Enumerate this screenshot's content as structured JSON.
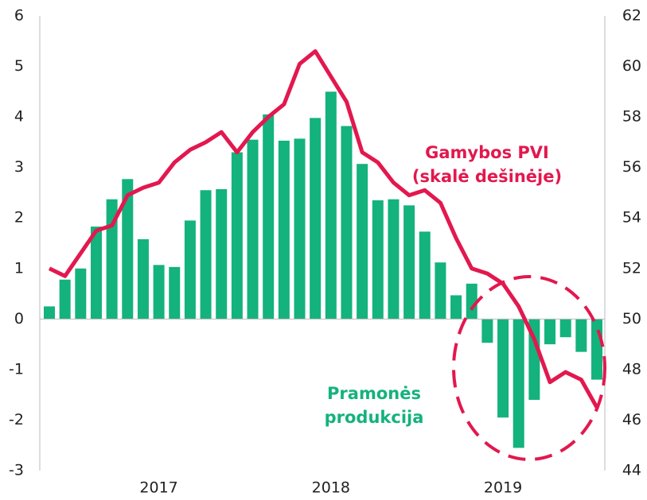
{
  "chart_data": {
    "type": "bar",
    "categories": [
      null,
      null,
      null,
      null,
      null,
      null,
      null,
      "2017",
      null,
      null,
      null,
      null,
      null,
      null,
      null,
      null,
      null,
      null,
      "2018",
      null,
      null,
      null,
      null,
      null,
      null,
      null,
      null,
      null,
      null,
      "2019",
      null,
      null,
      null,
      null,
      null,
      null
    ],
    "series": [
      {
        "name": [
          "Pramonės",
          "produkcija"
        ],
        "type": "bar",
        "color": "#14b27d",
        "axis": "y",
        "values": [
          0.25,
          0.78,
          1.0,
          1.83,
          2.37,
          2.77,
          1.58,
          1.07,
          1.03,
          1.95,
          2.55,
          2.57,
          3.3,
          3.55,
          4.05,
          3.53,
          3.57,
          3.98,
          4.5,
          3.82,
          3.07,
          2.35,
          2.37,
          2.25,
          1.73,
          1.12,
          0.47,
          0.7,
          -0.47,
          -1.95,
          -2.55,
          -1.6,
          -0.5,
          -0.36,
          -0.65,
          -1.2
        ]
      },
      {
        "name": [
          "Gamybos PVI",
          "(skalė dešinėje)"
        ],
        "type": "line",
        "color": "#e2184e",
        "axis": "y2",
        "values": [
          52.0,
          51.7,
          52.6,
          53.5,
          53.7,
          54.9,
          55.2,
          55.4,
          56.2,
          56.7,
          57.0,
          57.4,
          56.6,
          57.4,
          58.0,
          58.5,
          60.1,
          60.6,
          59.6,
          58.6,
          56.6,
          56.2,
          55.4,
          54.9,
          55.1,
          54.6,
          53.2,
          52.0,
          51.8,
          51.4,
          50.5,
          49.2,
          47.5,
          47.9,
          47.6,
          46.5
        ]
      }
    ],
    "ylim": [
      -3,
      6
    ],
    "yticks": [
      -3,
      -2,
      -1,
      0,
      1,
      2,
      3,
      4,
      5,
      6
    ],
    "y2lim": [
      44,
      62
    ],
    "y2ticks": [
      44,
      46,
      48,
      50,
      52,
      54,
      56,
      58,
      60,
      62
    ],
    "highlight_color": "#e2184e"
  }
}
